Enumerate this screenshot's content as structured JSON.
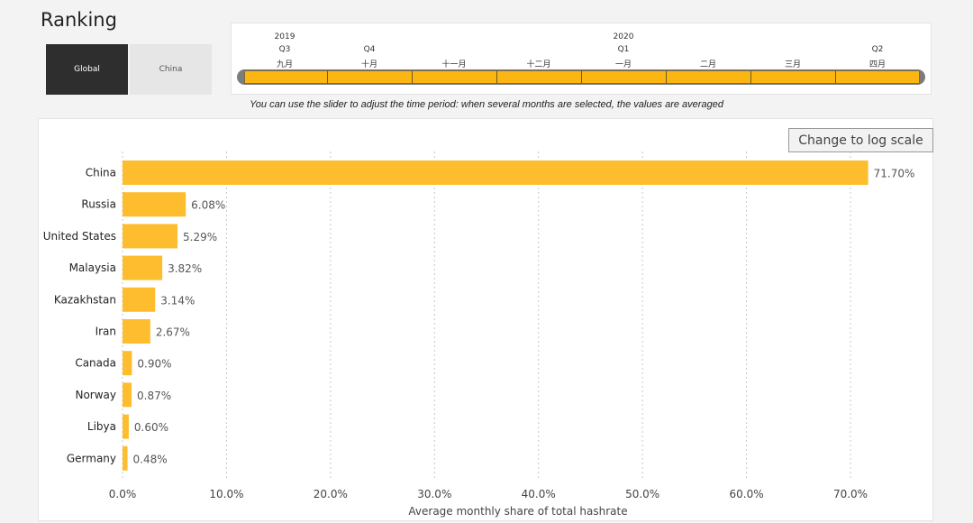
{
  "header": {
    "title": "Ranking"
  },
  "region_toggle": {
    "active": "Global",
    "inactive": "China"
  },
  "timeline": {
    "years": [
      "2019",
      "2020"
    ],
    "quarters": [
      "Q3",
      "Q4",
      "Q1",
      "Q2"
    ],
    "months": [
      "九月",
      "十月",
      "十一月",
      "十二月",
      "一月",
      "二月",
      "三月",
      "四月"
    ]
  },
  "hint": "You can use the slider to adjust the time period: when several months are selected, the values are averaged",
  "log_button": "Change to log scale",
  "colors": {
    "bar": "#fdbd2e",
    "slider": "#fbb613"
  },
  "chart_data": {
    "type": "bar",
    "orientation": "horizontal",
    "categories": [
      "China",
      "Russia",
      "United States",
      "Malaysia",
      "Kazakhstan",
      "Iran",
      "Canada",
      "Norway",
      "Libya",
      "Germany"
    ],
    "values": [
      71.7,
      6.08,
      5.29,
      3.82,
      3.14,
      2.67,
      0.9,
      0.87,
      0.6,
      0.48
    ],
    "value_labels": [
      "71.70%",
      "6.08%",
      "5.29%",
      "3.82%",
      "3.14%",
      "2.67%",
      "0.90%",
      "0.87%",
      "0.60%",
      "0.48%"
    ],
    "xlabel": "Average monthly share of total hashrate",
    "xlim": [
      0,
      77
    ],
    "xticks": [
      0,
      10,
      20,
      30,
      40,
      50,
      60,
      70
    ],
    "xtick_labels": [
      "0.0%",
      "10.0%",
      "20.0%",
      "30.0%",
      "40.0%",
      "50.0%",
      "60.0%",
      "70.0%"
    ],
    "grid": true
  }
}
